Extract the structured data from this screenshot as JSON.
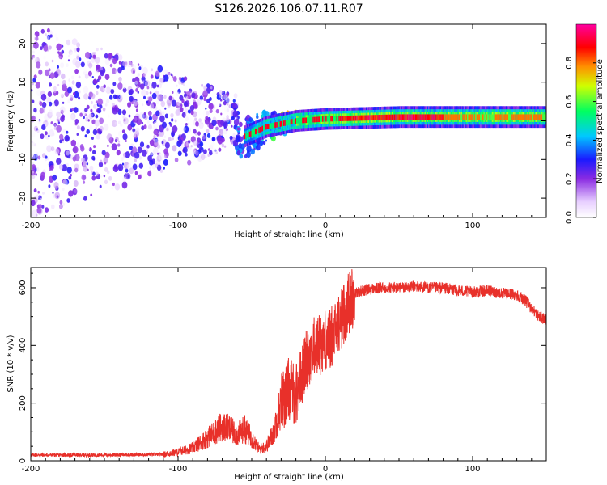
{
  "chart_data": [
    {
      "type": "heatmap",
      "title": "S126.2026.106.07.11.R07",
      "xlabel": "Height of straight line (km)",
      "ylabel": "Frequency (Hz)",
      "xlim": [
        -200,
        150
      ],
      "ylim": [
        -25,
        25
      ],
      "xticks": [
        "-200",
        "-100",
        "0",
        "100"
      ],
      "yticks": [
        "-20",
        "-10",
        "0",
        "10",
        "20"
      ],
      "colorbar": {
        "label": "Normalized spectral amplitude",
        "range": [
          0,
          1
        ],
        "ticks": [
          "0.0",
          "0.2",
          "0.4",
          "0.6",
          "0.8"
        ]
      },
      "description_points": [
        {
          "x": -200,
          "spread": 25,
          "peak": 0.3
        },
        {
          "x": -100,
          "spread": 12,
          "peak": 0.3
        },
        {
          "x": -50,
          "spread": 5,
          "peak": 0.35
        },
        {
          "x": -20,
          "spread": 2,
          "peak": 0.9
        },
        {
          "x": 0,
          "spread": 1.5,
          "peak": 1.0
        },
        {
          "x": 50,
          "spread": 1,
          "peak": 1.0
        },
        {
          "x": 150,
          "spread": 1,
          "peak": 0.8
        }
      ],
      "ridge": [
        {
          "x": -55,
          "freq": -4
        },
        {
          "x": -40,
          "freq": -1.5
        },
        {
          "x": -20,
          "freq": 0
        },
        {
          "x": 0,
          "freq": 0.5
        },
        {
          "x": 50,
          "freq": 1
        },
        {
          "x": 100,
          "freq": 1
        },
        {
          "x": 150,
          "freq": 1
        }
      ]
    },
    {
      "type": "line",
      "xlabel": "Height of straight line (km)",
      "ylabel": "SNR (10 * v/v)",
      "xlim": [
        -200,
        150
      ],
      "ylim": [
        0,
        670
      ],
      "xticks": [
        "-200",
        "-100",
        "0",
        "100"
      ],
      "yticks": [
        "0",
        "200",
        "400",
        "600"
      ],
      "color": "#e8302a",
      "series": [
        {
          "name": "SNR",
          "x": [
            -200,
            -150,
            -110,
            -100,
            -90,
            -80,
            -70,
            -65,
            -60,
            -55,
            -50,
            -45,
            -40,
            -35,
            -30,
            -25,
            -20,
            -15,
            -10,
            -5,
            0,
            5,
            10,
            15,
            20,
            25,
            30,
            40,
            50,
            60,
            70,
            80,
            90,
            100,
            110,
            120,
            130,
            135,
            140,
            145,
            150
          ],
          "y": [
            20,
            20,
            22,
            30,
            45,
            80,
            120,
            110,
            90,
            110,
            80,
            40,
            50,
            100,
            200,
            250,
            230,
            320,
            380,
            400,
            420,
            430,
            480,
            540,
            580,
            590,
            595,
            600,
            600,
            605,
            600,
            600,
            590,
            585,
            590,
            580,
            575,
            560,
            530,
            500,
            490
          ]
        }
      ]
    }
  ]
}
